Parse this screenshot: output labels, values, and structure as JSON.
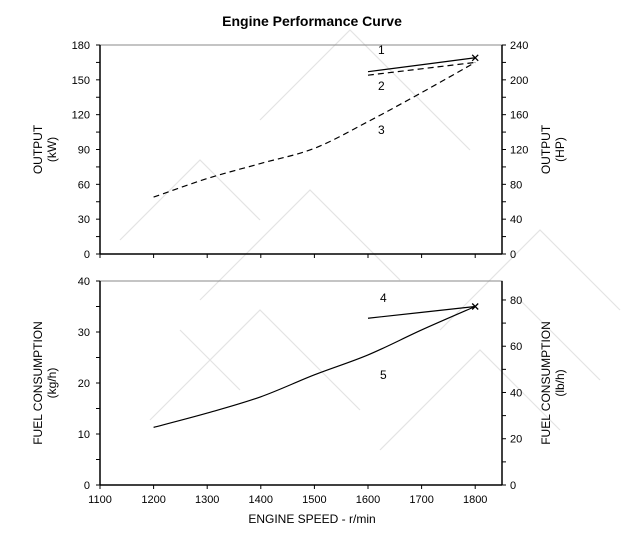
{
  "chart_data": [
    {
      "type": "line",
      "title": "Engine Performance Curve",
      "xlabel": "",
      "ylabel": "OUTPUT (kW)",
      "ylabel_lines": [
        "OUTPUT",
        "(kW)"
      ],
      "y2label_lines": [
        "OUTPUT",
        "(HP)"
      ],
      "xlim": [
        1100,
        1850
      ],
      "ylim": [
        0,
        180
      ],
      "y2lim": [
        0,
        240
      ],
      "xticks": [
        1100,
        1200,
        1300,
        1400,
        1500,
        1600,
        1700,
        1800
      ],
      "yticks": [
        0,
        30,
        60,
        90,
        120,
        150,
        180
      ],
      "y2ticks": [
        0,
        40,
        80,
        120,
        160,
        200,
        240
      ],
      "grid": false,
      "series": [
        {
          "label": "1",
          "style": "solid",
          "x": [
            1600,
            1800
          ],
          "y": [
            157,
            169
          ]
        },
        {
          "label": "2",
          "style": "dashed",
          "x": [
            1600,
            1800
          ],
          "y": [
            154,
            165
          ]
        },
        {
          "label": "3",
          "style": "dashed",
          "x": [
            1200,
            1300,
            1400,
            1500,
            1600,
            1700,
            1800
          ],
          "y": [
            49,
            65,
            78,
            91,
            114,
            139,
            165
          ]
        }
      ],
      "marker": {
        "x": 1800,
        "y": 169,
        "symbol": "x"
      }
    },
    {
      "type": "line",
      "xlabel": "ENGINE SPEED - r/min",
      "ylabel": "FUEL CONSUMPTION (kg/h)",
      "ylabel_lines": [
        "FUEL CONSUMPTION",
        "(kg/h)"
      ],
      "y2label_lines": [
        "FUEL CONSUMPTION",
        "(lb/h)"
      ],
      "xlim": [
        1100,
        1850
      ],
      "ylim": [
        0,
        40
      ],
      "y2lim": [
        0,
        88.2
      ],
      "xticks": [
        1100,
        1200,
        1300,
        1400,
        1500,
        1600,
        1700,
        1800
      ],
      "yticks": [
        0,
        10,
        20,
        30,
        40
      ],
      "y2ticks": [
        0,
        20,
        40,
        60,
        80
      ],
      "grid": false,
      "series": [
        {
          "label": "4",
          "style": "solid",
          "x": [
            1600,
            1800
          ],
          "y": [
            32.7,
            35
          ]
        },
        {
          "label": "5",
          "style": "solid",
          "x": [
            1200,
            1300,
            1400,
            1500,
            1600,
            1700,
            1800
          ],
          "y": [
            11.3,
            14.1,
            17.3,
            21.6,
            25.5,
            30.4,
            35
          ]
        }
      ],
      "marker": {
        "x": 1800,
        "y": 35,
        "symbol": "x"
      }
    }
  ]
}
